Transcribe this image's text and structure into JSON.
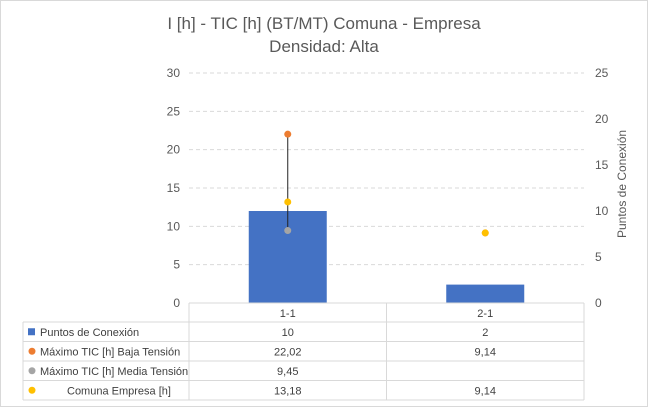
{
  "chart_data": {
    "type": "bar",
    "title": "I [h] - TIC [h] (BT/MT) Comuna - Empresa",
    "subtitle": "Densidad: Alta",
    "categories": [
      "1-1",
      "2-1"
    ],
    "y_left": {
      "ylim": [
        0,
        30
      ],
      "ticks": [
        "0",
        "5",
        "10",
        "15",
        "20",
        "25",
        "30"
      ]
    },
    "y_right": {
      "label": "Puntos de Conexión",
      "ylim": [
        0,
        25
      ],
      "ticks": [
        "0",
        "5",
        "10",
        "15",
        "20",
        "25"
      ]
    },
    "grid": "horizontal-dashed",
    "legend_placement": "data-table",
    "series": [
      {
        "name": "Puntos de Conexión",
        "kind": "bar",
        "axis": "right",
        "color": "#4472c4",
        "values": [
          10,
          2
        ],
        "labels": [
          "10",
          "2"
        ]
      },
      {
        "name": "Máximo TIC [h] Baja Tensión",
        "kind": "point",
        "axis": "left",
        "color": "#ed7d31",
        "values": [
          22.02,
          9.14
        ],
        "labels": [
          "22,02",
          "9,14"
        ]
      },
      {
        "name": "Máximo TIC [h] Media Tensión",
        "kind": "point",
        "axis": "left",
        "color": "#a5a5a5",
        "values": [
          9.45,
          null
        ],
        "labels": [
          "9,45",
          ""
        ]
      },
      {
        "name": "Comuna Empresa [h]",
        "kind": "point",
        "axis": "left",
        "color": "#ffc000",
        "values": [
          13.18,
          9.14
        ],
        "labels": [
          "13,18",
          "9,14"
        ]
      }
    ]
  }
}
